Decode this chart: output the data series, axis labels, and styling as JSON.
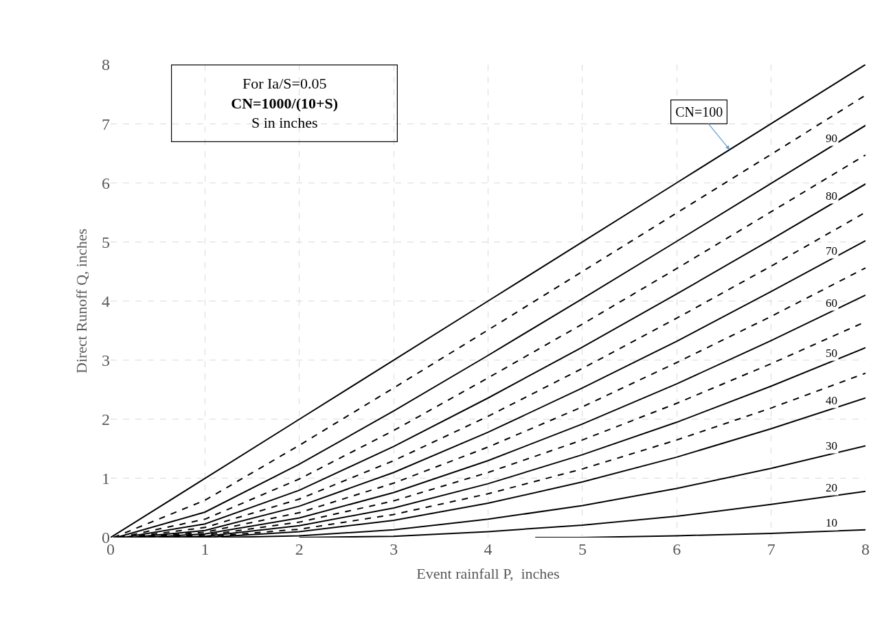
{
  "chart_data": {
    "type": "line",
    "xlabel": "Event rainfall P,  inches",
    "ylabel": "Direct Runoff Q, inches",
    "annotations": [
      "For Ia/S=0.05\nCN=1000/(10+S)\nS in inches"
    ],
    "xlim": [
      0,
      8
    ],
    "ylim": [
      0,
      8
    ],
    "xticks": [
      0,
      1,
      2,
      3,
      4,
      5,
      6,
      7,
      8
    ],
    "yticks": [
      0,
      1,
      2,
      3,
      4,
      5,
      6,
      7,
      8
    ],
    "grid": true,
    "legend": false,
    "marker": "none",
    "series": [
      {
        "name": "CN=100",
        "color": "#000000",
        "line_style": "solid",
        "x": [
          0,
          1,
          2,
          3,
          4,
          5,
          6,
          7,
          8
        ],
        "values": [
          0,
          1,
          2,
          3,
          4,
          5,
          6,
          7,
          8
        ]
      },
      {
        "color": "#000000",
        "line_style": "dashed",
        "x": [
          0.03,
          1,
          2,
          3,
          4,
          5,
          6,
          7,
          8
        ],
        "values": [
          0,
          0.63,
          1.56,
          2.53,
          3.51,
          4.5,
          5.49,
          6.48,
          7.48
        ]
      },
      {
        "name": "90",
        "color": "#000000",
        "line_style": "solid",
        "x": [
          0.06,
          1,
          2,
          3,
          4,
          5,
          6,
          7,
          8
        ],
        "values": [
          0,
          0.43,
          1.24,
          2.14,
          3.08,
          4.04,
          5.01,
          5.99,
          6.97
        ]
      },
      {
        "color": "#000000",
        "line_style": "dashed",
        "x": [
          0.09,
          1,
          2,
          3,
          4,
          5,
          6,
          7,
          8
        ],
        "values": [
          0,
          0.31,
          0.99,
          1.81,
          2.7,
          3.61,
          4.55,
          5.51,
          6.47
        ]
      },
      {
        "name": "80",
        "color": "#000000",
        "line_style": "solid",
        "x": [
          0.13,
          1,
          2,
          3,
          4,
          5,
          6,
          7,
          8
        ],
        "values": [
          0,
          0.23,
          0.8,
          1.54,
          2.36,
          3.22,
          4.12,
          5.04,
          5.98
        ]
      },
      {
        "color": "#000000",
        "line_style": "dashed",
        "x": [
          0.17,
          1,
          2,
          3,
          4,
          5,
          6,
          7,
          8
        ],
        "values": [
          0,
          0.17,
          0.65,
          1.3,
          2.05,
          2.86,
          3.71,
          4.59,
          5.5
        ]
      },
      {
        "name": "70",
        "color": "#000000",
        "line_style": "solid",
        "x": [
          0.21,
          1,
          2,
          3,
          4,
          5,
          6,
          7,
          8
        ],
        "values": [
          0,
          0.12,
          0.53,
          1.1,
          1.78,
          2.53,
          3.32,
          4.16,
          5.02
        ]
      },
      {
        "color": "#000000",
        "line_style": "dashed",
        "x": [
          0.27,
          1,
          2,
          3,
          4,
          5,
          6,
          7,
          8
        ],
        "values": [
          0,
          0.09,
          0.42,
          0.92,
          1.53,
          2.21,
          2.96,
          3.74,
          4.56
        ]
      },
      {
        "name": "60",
        "color": "#000000",
        "line_style": "solid",
        "x": [
          0.33,
          1,
          2,
          3,
          4,
          5,
          6,
          7,
          8
        ],
        "values": [
          0,
          0.06,
          0.33,
          0.76,
          1.3,
          1.92,
          2.6,
          3.33,
          4.1
        ]
      },
      {
        "color": "#000000",
        "line_style": "dashed",
        "x": [
          0.41,
          1,
          2,
          3,
          4,
          5,
          6,
          7,
          8
        ],
        "values": [
          0,
          0.04,
          0.26,
          0.62,
          1.1,
          1.65,
          2.27,
          2.94,
          3.65
        ]
      },
      {
        "name": "50",
        "color": "#000000",
        "line_style": "solid",
        "x": [
          0.5,
          1,
          2,
          3,
          4,
          5,
          6,
          7,
          8
        ],
        "values": [
          0,
          0.02,
          0.2,
          0.5,
          0.91,
          1.4,
          1.95,
          2.56,
          3.21
        ]
      },
      {
        "color": "#000000",
        "line_style": "dashed",
        "x": [
          0.61,
          1,
          2,
          3,
          4,
          5,
          6,
          7,
          8
        ],
        "values": [
          0,
          0.01,
          0.14,
          0.39,
          0.74,
          1.16,
          1.65,
          2.19,
          2.78
        ]
      },
      {
        "name": "40",
        "color": "#000000",
        "line_style": "solid",
        "x": [
          0.75,
          1,
          2,
          3,
          4,
          5,
          6,
          7,
          8
        ],
        "values": [
          0,
          0.0,
          0.1,
          0.29,
          0.58,
          0.94,
          1.36,
          1.84,
          2.36
        ]
      },
      {
        "name": "30",
        "color": "#000000",
        "line_style": "solid",
        "x": [
          1.17,
          2,
          3,
          4,
          5,
          6,
          7,
          8
        ],
        "values": [
          0,
          0.03,
          0.13,
          0.31,
          0.54,
          0.83,
          1.17,
          1.55
        ]
      },
      {
        "name": "20",
        "color": "#000000",
        "line_style": "solid",
        "x": [
          2,
          3,
          4,
          5,
          6,
          7,
          8
        ],
        "values": [
          0,
          0.02,
          0.1,
          0.21,
          0.36,
          0.56,
          0.78
        ]
      },
      {
        "name": "10",
        "color": "#000000",
        "line_style": "solid",
        "x": [
          4.5,
          5,
          6,
          7,
          8
        ],
        "values": [
          0,
          0.0,
          0.03,
          0.07,
          0.13
        ]
      }
    ]
  }
}
